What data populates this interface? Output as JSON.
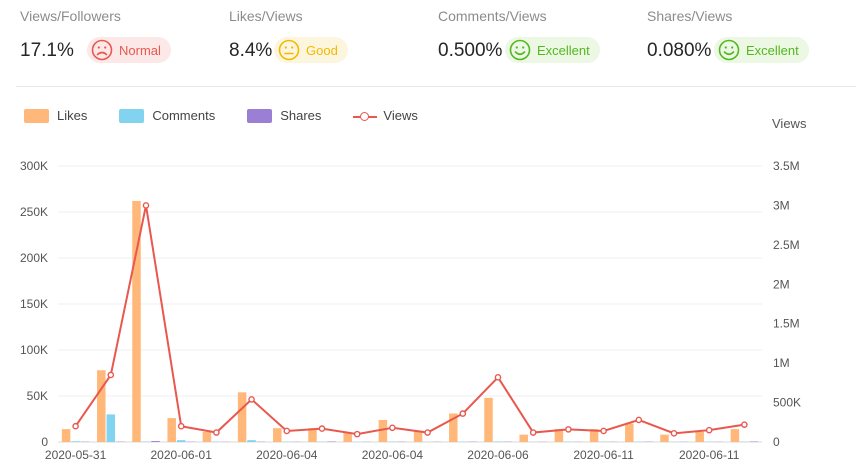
{
  "metrics": [
    {
      "label": "Views/Followers",
      "value": "17.1%",
      "status": "Normal",
      "face": "sad-face-icon",
      "color": "#e8584f",
      "bg": "#fde8e8"
    },
    {
      "label": "Likes/Views",
      "value": "8.4%",
      "status": "Good",
      "face": "neutral-face-icon",
      "color": "#f5b800",
      "bg": "#fdf6de"
    },
    {
      "label": "Comments/Views",
      "value": "0.500%",
      "status": "Excellent",
      "face": "happy-face-icon",
      "color": "#52b820",
      "bg": "#ecf7e4"
    },
    {
      "label": "Shares/Views",
      "value": "0.080%",
      "status": "Excellent",
      "face": "happy-face-icon",
      "color": "#52b820",
      "bg": "#ecf7e4"
    }
  ],
  "legend": [
    {
      "label": "Likes",
      "color": "#ffb87a"
    },
    {
      "label": "Comments",
      "color": "#82d3f0"
    },
    {
      "label": "Shares",
      "color": "#9b7fd4"
    },
    {
      "label": "Views",
      "color": "#e8584f"
    }
  ],
  "chart_data": {
    "type": "bar",
    "title": "",
    "ylabel": "",
    "y2label": "Views",
    "ylim": [
      0,
      300000
    ],
    "y2lim": [
      0,
      3500000
    ],
    "yticks": [
      "0",
      "50K",
      "100K",
      "150K",
      "200K",
      "250K",
      "300K"
    ],
    "y2ticks": [
      "0",
      "500K",
      "1M",
      "1.5M",
      "2M",
      "2.5M",
      "3M",
      "3.5M"
    ],
    "xtick_labels": [
      "2020-05-31",
      "2020-06-01",
      "2020-06-04",
      "2020-06-04",
      "2020-06-06",
      "2020-06-11",
      "2020-06-11"
    ],
    "grid": true,
    "series": [
      {
        "name": "Likes",
        "type": "bar",
        "axis": "left",
        "values": [
          14000,
          78000,
          262000,
          26000,
          11000,
          54000,
          15000,
          15000,
          10000,
          24000,
          12000,
          31000,
          48000,
          8000,
          14000,
          14000,
          20000,
          8000,
          11000,
          14000
        ]
      },
      {
        "name": "Comments",
        "type": "bar",
        "axis": "left",
        "values": [
          800,
          30000,
          500,
          2000,
          300,
          2000,
          300,
          300,
          200,
          400,
          200,
          400,
          600,
          200,
          300,
          300,
          400,
          200,
          300,
          300
        ]
      },
      {
        "name": "Shares",
        "type": "bar",
        "axis": "left",
        "values": [
          300,
          300,
          1000,
          300,
          200,
          300,
          200,
          500,
          200,
          300,
          200,
          300,
          300,
          200,
          200,
          200,
          300,
          200,
          200,
          500
        ]
      },
      {
        "name": "Views",
        "type": "line",
        "axis": "right",
        "values": [
          200000,
          850000,
          3000000,
          200000,
          120000,
          540000,
          140000,
          170000,
          100000,
          180000,
          120000,
          360000,
          820000,
          120000,
          160000,
          140000,
          280000,
          110000,
          150000,
          220000
        ]
      }
    ]
  }
}
